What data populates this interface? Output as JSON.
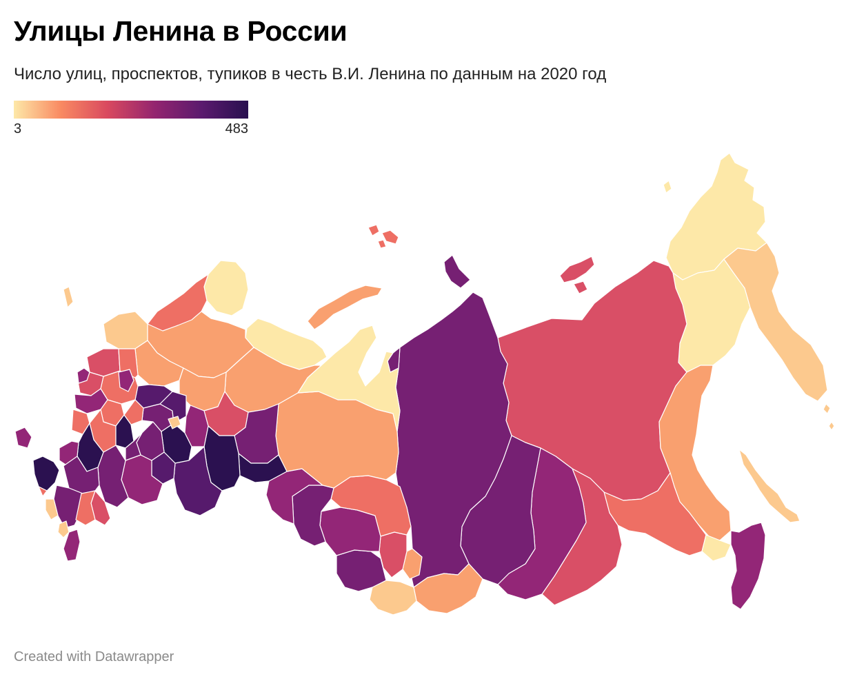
{
  "header": {
    "title": "Улицы Ленина в России",
    "subtitle": "Число улиц, проспектов, тупиков в честь В.И. Ленина по данным на 2020 год"
  },
  "legend": {
    "min_label": "3",
    "max_label": "483",
    "min_value": 3,
    "max_value": 483,
    "color_scale": [
      "#fde8a8",
      "#f98a62",
      "#d9495f",
      "#94256f",
      "#5b1a6e",
      "#28104f"
    ]
  },
  "footer": {
    "credit": "Created with Datawrapper"
  },
  "colors": {
    "level_1": "#fde8a8",
    "level_2": "#fcc98e",
    "level_3": "#f9a06f",
    "level_4": "#ee6f64",
    "level_5": "#d94f66",
    "level_6": "#932677",
    "level_7": "#762073",
    "level_8": "#561a6c",
    "level_9": "#2b1150",
    "border": "#ffffff"
  }
}
